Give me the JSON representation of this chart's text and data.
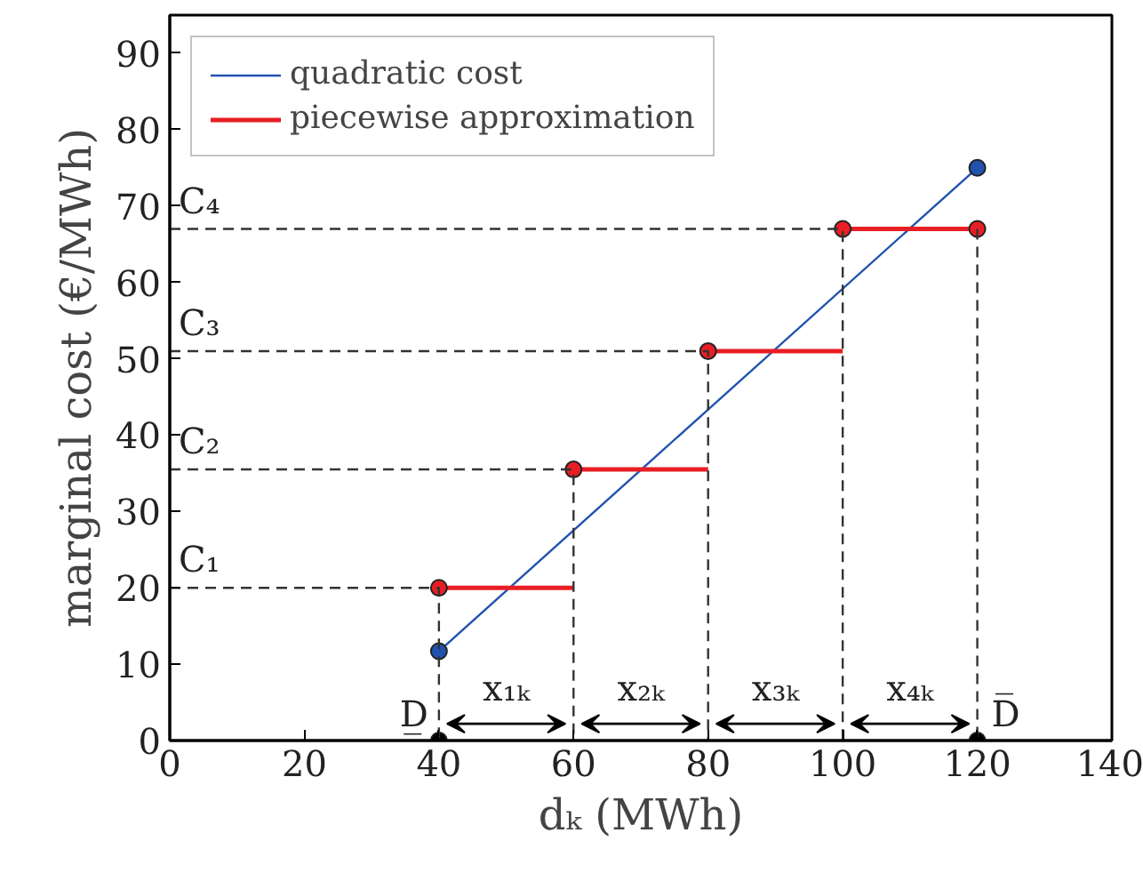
{
  "chart_data": {
    "type": "line",
    "xlabel": "dₖ (MWh)",
    "ylabel": "marginal cost (€/MWh)",
    "xlim": [
      0,
      140
    ],
    "xticks": [
      0,
      20,
      40,
      60,
      80,
      100,
      120,
      140
    ],
    "ylim": [
      0,
      95
    ],
    "yticks": [
      0,
      10,
      20,
      30,
      40,
      50,
      60,
      70,
      80,
      90
    ],
    "grid": false,
    "legend": "top left",
    "series": [
      {
        "name": "quadratic cost",
        "color": "#2152b0",
        "marker": "circle",
        "x": [
          40,
          120
        ],
        "values": [
          11.7,
          75
        ]
      },
      {
        "name": "piecewise approximation",
        "color": "#e81e25",
        "x": [
          40,
          60
        ],
        "values": [
          20,
          20
        ]
      },
      {
        "color": "#e81e25",
        "x": [
          60,
          80
        ],
        "values": [
          35.5,
          35.5
        ]
      },
      {
        "color": "#e81e25",
        "x": [
          80,
          100
        ],
        "values": [
          51,
          51
        ]
      },
      {
        "color": "#e81e25",
        "x": [
          100,
          120
        ],
        "values": [
          67,
          67
        ]
      },
      {
        "type": "scatter",
        "color": "#e81e25",
        "x": [
          40,
          60,
          80,
          100,
          120
        ],
        "values": [
          20,
          35.5,
          51,
          67,
          67
        ]
      },
      {
        "type": "scatter",
        "color": "#000000",
        "x": [
          40,
          120
        ],
        "values": [
          0,
          0
        ]
      },
      {
        "color": "#333333",
        "line_style": "dashed",
        "x": [
          0,
          40,
          40
        ],
        "values": [
          20,
          20,
          0
        ]
      },
      {
        "color": "#333333",
        "line_style": "dashed",
        "x": [
          0,
          60,
          60
        ],
        "values": [
          35.5,
          35.5,
          0
        ]
      },
      {
        "color": "#333333",
        "line_style": "dashed",
        "x": [
          0,
          80,
          80
        ],
        "values": [
          51,
          51,
          0
        ]
      },
      {
        "color": "#333333",
        "line_style": "dashed",
        "x": [
          0,
          100,
          100
        ],
        "values": [
          67,
          67,
          0
        ]
      },
      {
        "color": "#333333",
        "line_style": "dashed",
        "x": [
          120,
          120
        ],
        "values": [
          67,
          0
        ]
      }
    ],
    "annotations": [
      {
        "text": "C₁",
        "x": 0,
        "y": 20
      },
      {
        "text": "C₂",
        "x": 0,
        "y": 35.5
      },
      {
        "text": "C₃",
        "x": 0,
        "y": 51
      },
      {
        "text": "C₄",
        "x": 0,
        "y": 67
      },
      {
        "text": "D̲",
        "x": 40,
        "y": 0
      },
      {
        "text": "D̅",
        "x": 120,
        "y": 0
      },
      "x₁ₖ",
      "x₂ₖ",
      "x₃ₖ",
      "x₄ₖ"
    ]
  }
}
